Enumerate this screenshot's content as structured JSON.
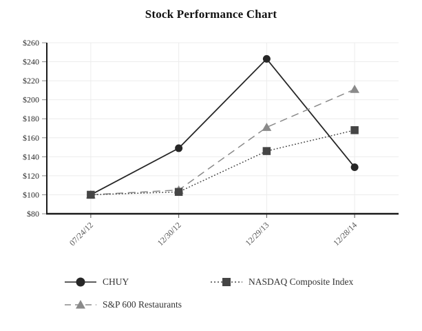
{
  "page": {
    "background_color": "#ffffff"
  },
  "chart_data": {
    "type": "line",
    "title": "Stock Performance Chart",
    "x_labels": [
      "07/24/12",
      "12/30/12",
      "12/29/13",
      "12/28/14"
    ],
    "ylim": [
      80,
      260
    ],
    "y_tick_step": 20,
    "y_tick_labels": [
      "$80",
      "$100",
      "$120",
      "$140",
      "$160",
      "$180",
      "$200",
      "$220",
      "$240",
      "$260"
    ],
    "grid": true,
    "legend_position": "bottom",
    "series": [
      {
        "name": "CHUY",
        "values": [
          100,
          149,
          243,
          129
        ],
        "line_style": "solid",
        "marker": "circle",
        "color": "#262626"
      },
      {
        "name": "NASDAQ Composite Index",
        "values": [
          100,
          103,
          146,
          168
        ],
        "line_style": "dotted",
        "marker": "square",
        "color": "#454545"
      },
      {
        "name": "S&P 600 Restaurants",
        "values": [
          100,
          105,
          171,
          211
        ],
        "line_style": "dashed",
        "marker": "triangle",
        "color": "#8a8a8a"
      }
    ],
    "style": {
      "axis_color": "#1a1a1a",
      "gridline_color": "#ececec",
      "y_tick_mark_color": "#888888",
      "x_tick_mark_color": "#555555"
    }
  }
}
